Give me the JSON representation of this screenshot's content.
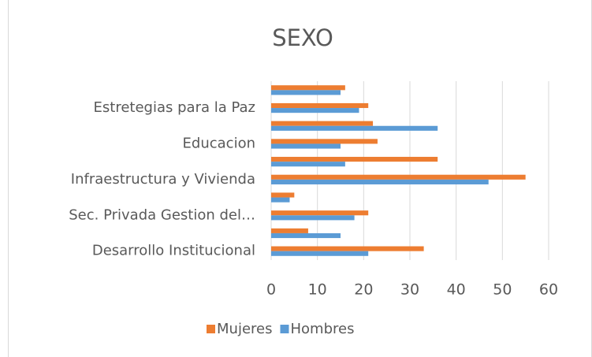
{
  "chart_data": {
    "type": "hbar",
    "title": "SEXO",
    "categories": [
      "Desarrollo Institucional",
      null,
      "Sec. Privada Gestion del…",
      null,
      "Infraestructura y Vivienda",
      null,
      "Educacion",
      null,
      "Estretegias para la Paz",
      null
    ],
    "series": [
      {
        "name": "Mujeres",
        "color": "#ed7d31",
        "values": [
          33,
          8,
          21,
          5,
          55,
          36,
          23,
          22,
          21,
          16
        ]
      },
      {
        "name": "Hombres",
        "color": "#5b9bd5",
        "values": [
          21,
          15,
          18,
          4,
          47,
          16,
          15,
          36,
          19,
          15
        ]
      }
    ],
    "xlim": [
      0,
      60
    ],
    "xticks": [
      0,
      10,
      20,
      30,
      40,
      50,
      60
    ],
    "grid": true,
    "legend": "bottom"
  }
}
